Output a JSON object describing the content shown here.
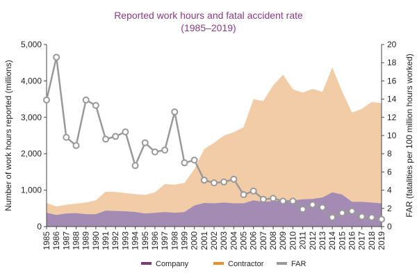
{
  "chart_data": {
    "type": "area",
    "title": "Reported work hours and fatal accident rate",
    "subtitle": "(1985–2019)",
    "ylabel_left": "Number of work hours reported (millions)",
    "ylabel_right": "FAR (fatalities per 100 million hours worked)",
    "ylim_left": [
      0,
      5000
    ],
    "ylim_right": [
      0,
      20
    ],
    "yticks_left": [
      "0",
      "1,000",
      "2,000",
      "3,000",
      "4,000",
      "5,000"
    ],
    "yticks_right": [
      "0",
      "2",
      "4",
      "6",
      "8",
      "10",
      "12",
      "14",
      "16",
      "18",
      "20"
    ],
    "categories": [
      "1985",
      "1986",
      "1987",
      "1988",
      "1989",
      "1990",
      "1991",
      "1992",
      "1993",
      "1994",
      "1995",
      "1996",
      "1997",
      "1998",
      "1999",
      "2000",
      "2001",
      "2002",
      "2003",
      "2004",
      "2005",
      "2006",
      "2007",
      "2008",
      "2009",
      "2010",
      "2011",
      "2012",
      "2013",
      "2014",
      "2015",
      "2016",
      "2017",
      "2018",
      "2019"
    ],
    "series": [
      {
        "name": "Company",
        "axis": "left",
        "kind": "area",
        "color": "#a48bb4",
        "legend_color": "#7b3b7b",
        "values": [
          380,
          320,
          360,
          370,
          340,
          340,
          440,
          430,
          420,
          400,
          360,
          380,
          400,
          380,
          400,
          580,
          650,
          640,
          660,
          640,
          640,
          720,
          680,
          700,
          720,
          720,
          750,
          760,
          800,
          940,
          880,
          680,
          680,
          660,
          640
        ]
      },
      {
        "name": "Contractor",
        "axis": "left",
        "kind": "area",
        "color": "#f2cca7",
        "legend_color": "#e8902e",
        "values": [
          270,
          230,
          240,
          260,
          320,
          380,
          520,
          520,
          500,
          490,
          510,
          560,
          770,
          770,
          800,
          1000,
          1480,
          1660,
          1840,
          1950,
          2090,
          2780,
          2770,
          3180,
          3450,
          3050,
          2930,
          3020,
          2900,
          3430,
          2830,
          2450,
          2550,
          2760,
          2750
        ]
      },
      {
        "name": "FAR",
        "axis": "right",
        "kind": "line",
        "color": "#999999",
        "legend_color": "#999999",
        "values": [
          13.9,
          18.6,
          9.8,
          8.9,
          13.9,
          13.3,
          9.6,
          9.9,
          10.4,
          6.7,
          9.2,
          8.2,
          8.4,
          12.6,
          7.0,
          7.3,
          5.1,
          4.8,
          4.9,
          5.2,
          3.5,
          3.9,
          3.0,
          3.1,
          2.8,
          2.8,
          1.9,
          2.4,
          2.1,
          1.0,
          1.5,
          1.7,
          1.1,
          1.0,
          0.8
        ]
      }
    ],
    "legend_placement": "bottom"
  }
}
